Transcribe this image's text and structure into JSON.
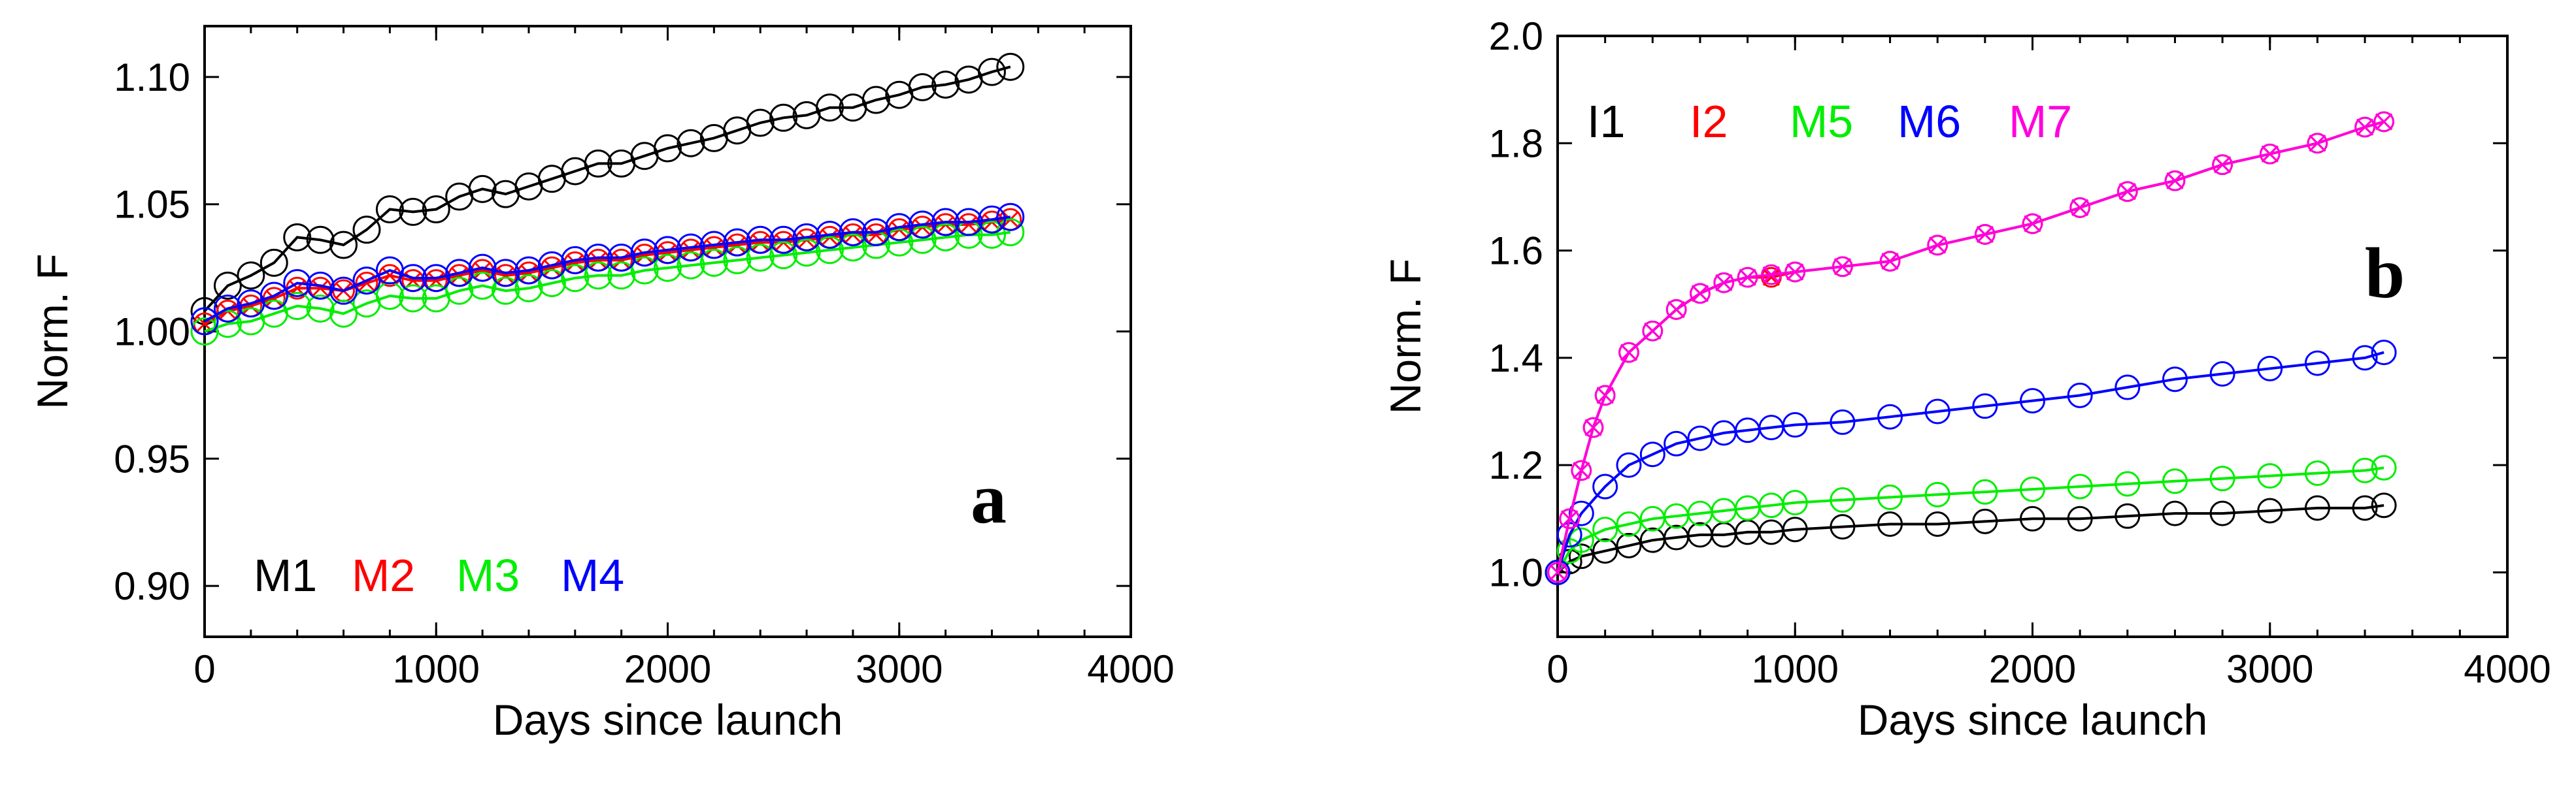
{
  "colors": {
    "black": "#000000",
    "red": "#ff0000",
    "green": "#00ee00",
    "blue": "#0000ff",
    "magenta": "#ff00dd"
  },
  "chart_data": [
    {
      "id": "a",
      "type": "line",
      "panel_label": "a",
      "xlabel": "Days since launch",
      "ylabel": "Norm. F",
      "xlim": [
        0,
        4000
      ],
      "ylim": [
        0.88,
        1.12
      ],
      "xticks": [
        0,
        1000,
        2000,
        3000,
        4000
      ],
      "xtick_labels": [
        "0",
        "1000",
        "2000",
        "3000",
        "4000"
      ],
      "yticks": [
        0.9,
        0.95,
        1.0,
        1.05,
        1.1
      ],
      "ytick_labels": [
        "0.90",
        "0.95",
        "1.00",
        "1.05",
        "1.10"
      ],
      "legend_position": "bottom-left",
      "series": [
        {
          "name": "M1",
          "color": "black",
          "x": [
            0,
            100,
            200,
            300,
            400,
            500,
            600,
            700,
            800,
            900,
            1000,
            1100,
            1200,
            1300,
            1400,
            1500,
            1600,
            1700,
            1800,
            1900,
            2000,
            2100,
            2200,
            2300,
            2400,
            2500,
            2600,
            2700,
            2800,
            2900,
            3000,
            3100,
            3200,
            3300,
            3400,
            3480
          ],
          "y": [
            1.008,
            1.018,
            1.022,
            1.027,
            1.037,
            1.036,
            1.034,
            1.04,
            1.048,
            1.047,
            1.048,
            1.053,
            1.056,
            1.054,
            1.057,
            1.06,
            1.063,
            1.066,
            1.066,
            1.069,
            1.072,
            1.074,
            1.076,
            1.079,
            1.082,
            1.084,
            1.085,
            1.088,
            1.088,
            1.091,
            1.093,
            1.096,
            1.097,
            1.099,
            1.102,
            1.104
          ]
        },
        {
          "name": "M2",
          "color": "red",
          "x": [
            0,
            100,
            200,
            300,
            400,
            500,
            600,
            700,
            800,
            900,
            1000,
            1100,
            1200,
            1300,
            1400,
            1500,
            1600,
            1700,
            1800,
            1900,
            2000,
            2100,
            2200,
            2300,
            2400,
            2500,
            2600,
            2700,
            2800,
            2900,
            3000,
            3100,
            3200,
            3300,
            3400,
            3480
          ],
          "y": [
            1.003,
            1.008,
            1.01,
            1.013,
            1.017,
            1.017,
            1.016,
            1.019,
            1.022,
            1.02,
            1.02,
            1.022,
            1.024,
            1.022,
            1.023,
            1.025,
            1.027,
            1.028,
            1.028,
            1.03,
            1.031,
            1.032,
            1.033,
            1.034,
            1.035,
            1.035,
            1.036,
            1.037,
            1.038,
            1.038,
            1.04,
            1.041,
            1.042,
            1.042,
            1.043,
            1.044
          ]
        },
        {
          "name": "M3",
          "color": "green",
          "x": [
            0,
            100,
            200,
            300,
            400,
            500,
            600,
            700,
            800,
            900,
            1000,
            1100,
            1200,
            1300,
            1400,
            1500,
            1600,
            1700,
            1800,
            1900,
            2000,
            2100,
            2200,
            2300,
            2400,
            2500,
            2600,
            2700,
            2800,
            2900,
            3000,
            3100,
            3200,
            3300,
            3400,
            3480
          ],
          "y": [
            1.0,
            1.003,
            1.004,
            1.007,
            1.01,
            1.009,
            1.007,
            1.011,
            1.014,
            1.013,
            1.013,
            1.016,
            1.018,
            1.016,
            1.017,
            1.019,
            1.021,
            1.022,
            1.022,
            1.024,
            1.025,
            1.026,
            1.027,
            1.028,
            1.029,
            1.03,
            1.031,
            1.032,
            1.033,
            1.034,
            1.035,
            1.036,
            1.037,
            1.038,
            1.038,
            1.039
          ]
        },
        {
          "name": "M4",
          "color": "blue",
          "x": [
            0,
            100,
            200,
            300,
            400,
            500,
            600,
            700,
            800,
            900,
            1000,
            1100,
            1200,
            1300,
            1400,
            1500,
            1600,
            1700,
            1800,
            1900,
            2000,
            2100,
            2200,
            2300,
            2400,
            2500,
            2600,
            2700,
            2800,
            2900,
            3000,
            3100,
            3200,
            3300,
            3400,
            3480
          ],
          "y": [
            1.004,
            1.009,
            1.011,
            1.014,
            1.019,
            1.018,
            1.016,
            1.02,
            1.024,
            1.021,
            1.021,
            1.023,
            1.025,
            1.023,
            1.024,
            1.026,
            1.028,
            1.029,
            1.029,
            1.031,
            1.032,
            1.033,
            1.034,
            1.035,
            1.036,
            1.036,
            1.037,
            1.038,
            1.039,
            1.039,
            1.041,
            1.042,
            1.043,
            1.043,
            1.044,
            1.045
          ]
        }
      ]
    },
    {
      "id": "b",
      "type": "line",
      "panel_label": "b",
      "xlabel": "Days since launch",
      "ylabel": "Norm. F",
      "xlim": [
        0,
        4000
      ],
      "ylim": [
        0.88,
        2.0
      ],
      "xticks": [
        0,
        1000,
        2000,
        3000,
        4000
      ],
      "xtick_labels": [
        "0",
        "1000",
        "2000",
        "3000",
        "4000"
      ],
      "yticks": [
        1.0,
        1.2,
        1.4,
        1.6,
        1.8,
        2.0
      ],
      "ytick_labels": [
        "1.0",
        "1.2",
        "1.4",
        "1.6",
        "1.8",
        "2.0"
      ],
      "legend_position": "top-left",
      "series": [
        {
          "name": "I1",
          "color": "black",
          "x": [
            0,
            50,
            100,
            200,
            300,
            400,
            500,
            600,
            700,
            800,
            900,
            1000,
            1200,
            1400,
            1600,
            1800,
            2000,
            2200,
            2400,
            2600,
            2800,
            3000,
            3200,
            3400,
            3480
          ],
          "y": [
            1.0,
            1.02,
            1.03,
            1.04,
            1.05,
            1.06,
            1.065,
            1.07,
            1.07,
            1.075,
            1.075,
            1.08,
            1.085,
            1.09,
            1.09,
            1.095,
            1.1,
            1.1,
            1.105,
            1.11,
            1.11,
            1.115,
            1.12,
            1.12,
            1.125
          ]
        },
        {
          "name": "I2",
          "color": "red",
          "x": [
            0,
            50,
            100,
            150,
            200,
            300,
            400,
            500,
            600,
            700,
            800,
            900,
            1000,
            1200,
            1400,
            1600,
            1800,
            2000,
            2200,
            2400,
            2600,
            2800,
            3000,
            3200,
            3400,
            3480
          ],
          "y": [
            1.0,
            1.1,
            1.19,
            1.27,
            1.33,
            1.41,
            1.45,
            1.49,
            1.52,
            1.54,
            1.55,
            1.55,
            1.56,
            1.57,
            1.58,
            1.61,
            1.63,
            1.65,
            1.68,
            1.71,
            1.73,
            1.76,
            1.78,
            1.8,
            1.83,
            1.84
          ]
        },
        {
          "name": "M5",
          "color": "green",
          "x": [
            0,
            50,
            100,
            200,
            300,
            400,
            500,
            600,
            700,
            800,
            900,
            1000,
            1200,
            1400,
            1600,
            1800,
            2000,
            2200,
            2400,
            2600,
            2800,
            3000,
            3200,
            3400,
            3480
          ],
          "y": [
            1.0,
            1.04,
            1.06,
            1.08,
            1.09,
            1.1,
            1.105,
            1.11,
            1.115,
            1.12,
            1.125,
            1.13,
            1.135,
            1.14,
            1.145,
            1.15,
            1.155,
            1.16,
            1.165,
            1.17,
            1.175,
            1.18,
            1.185,
            1.19,
            1.195
          ]
        },
        {
          "name": "M6",
          "color": "blue",
          "x": [
            0,
            50,
            100,
            200,
            300,
            400,
            500,
            600,
            700,
            800,
            900,
            1000,
            1200,
            1400,
            1600,
            1800,
            2000,
            2200,
            2400,
            2600,
            2800,
            3000,
            3200,
            3400,
            3480
          ],
          "y": [
            1.0,
            1.07,
            1.11,
            1.16,
            1.2,
            1.22,
            1.24,
            1.25,
            1.26,
            1.265,
            1.27,
            1.275,
            1.28,
            1.29,
            1.3,
            1.31,
            1.32,
            1.33,
            1.345,
            1.36,
            1.37,
            1.38,
            1.39,
            1.4,
            1.41
          ]
        },
        {
          "name": "M7",
          "color": "magenta",
          "x": [
            0,
            50,
            100,
            150,
            200,
            300,
            400,
            500,
            600,
            700,
            800,
            900,
            1000,
            1200,
            1400,
            1600,
            1800,
            2000,
            2200,
            2400,
            2600,
            2800,
            3000,
            3200,
            3400,
            3480
          ],
          "y": [
            1.0,
            1.1,
            1.19,
            1.27,
            1.33,
            1.41,
            1.45,
            1.49,
            1.52,
            1.54,
            1.55,
            1.555,
            1.56,
            1.57,
            1.58,
            1.61,
            1.63,
            1.65,
            1.68,
            1.71,
            1.73,
            1.76,
            1.78,
            1.8,
            1.83,
            1.84
          ]
        }
      ]
    }
  ]
}
